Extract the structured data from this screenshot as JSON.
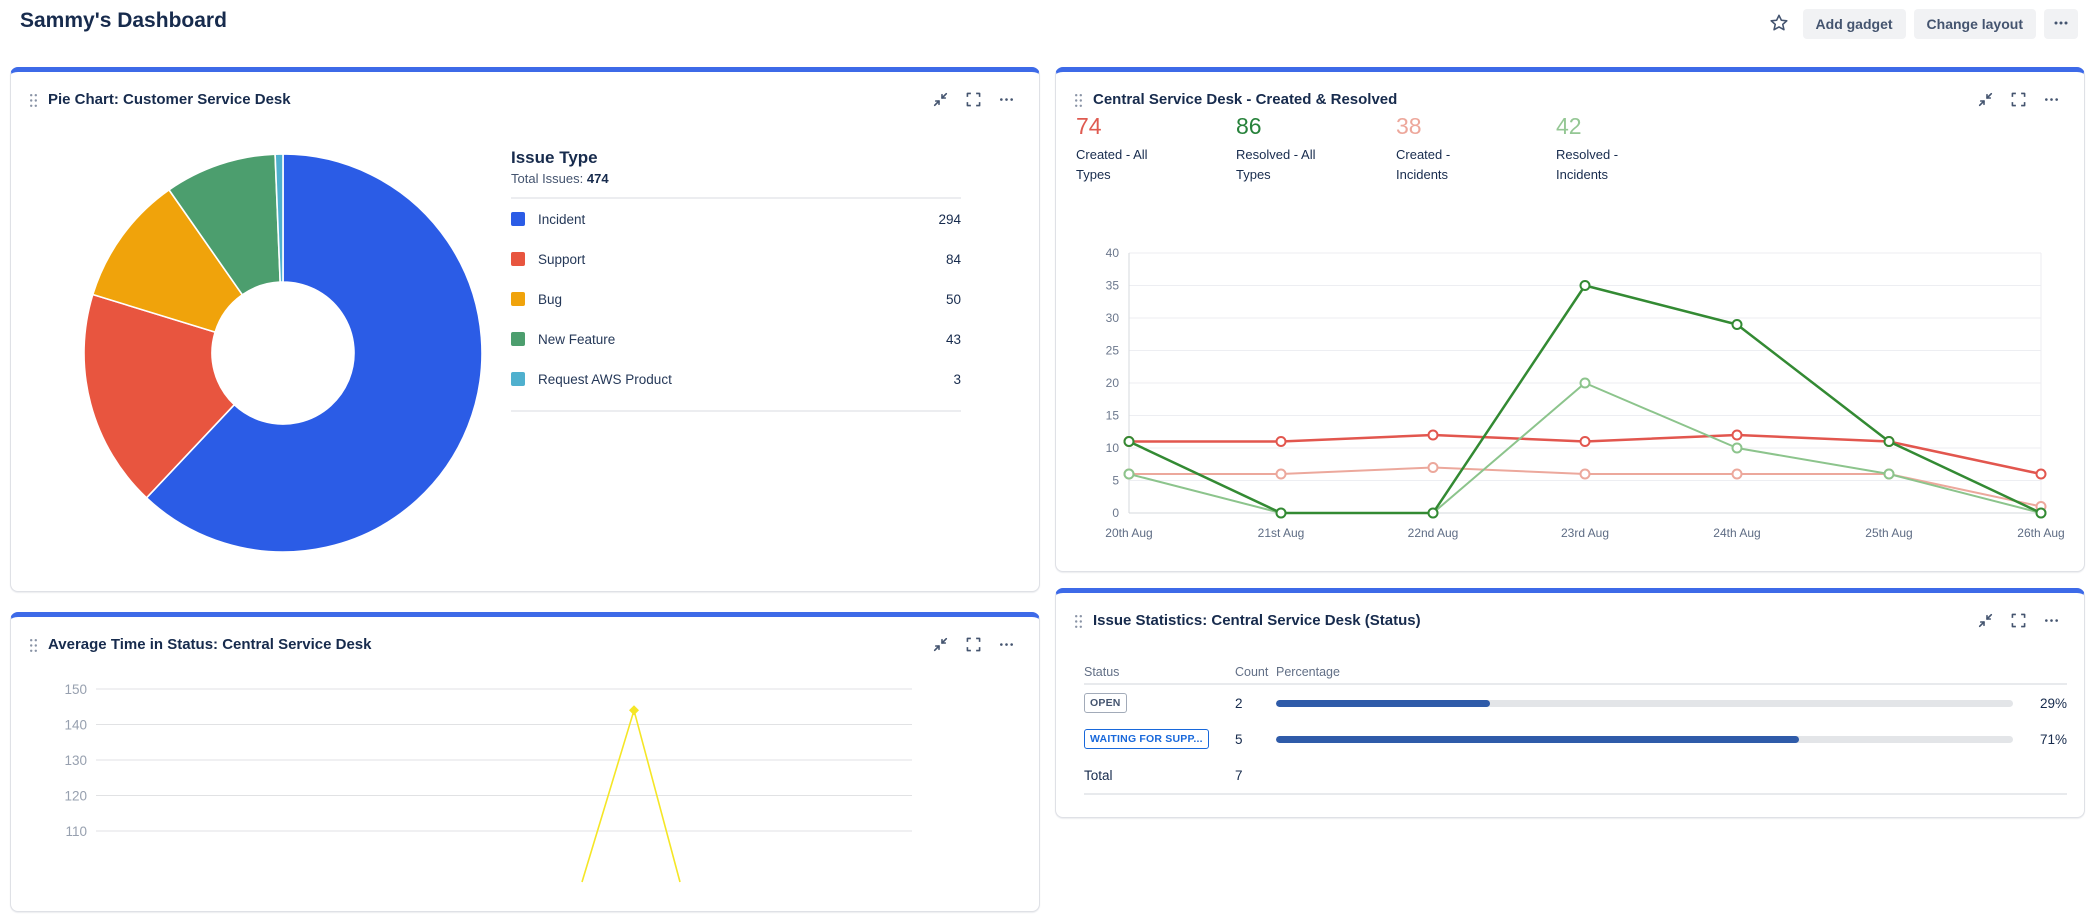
{
  "page": {
    "title": "Sammy's Dashboard"
  },
  "theme": {
    "accent": "#3D6AE8",
    "title_text": "#172B4D",
    "button_bg": "#F1F2F4",
    "button_text": "#44546F"
  },
  "toolbar": {
    "star_icon": "star-outline",
    "add_gadget_label": "Add gadget",
    "change_layout_label": "Change layout",
    "more_icon": "ellipsis"
  },
  "gadget_icons": {
    "drag": "drag-dots",
    "minimize": "collapse-arrows",
    "expand": "fullscreen-brackets",
    "more": "ellipsis"
  },
  "gadgets": {
    "pie": {
      "title": "Pie Chart: Customer Service Desk",
      "legend_title": "Issue Type",
      "total_label": "Total Issues:",
      "total_value": "474"
    },
    "created_resolved": {
      "title": "Central Service Desk - Created & Resolved",
      "stats": [
        {
          "value": "74",
          "label": "Created - All Types",
          "color": "#DF5A50"
        },
        {
          "value": "86",
          "label": "Resolved - All Types",
          "color": "#27823B"
        },
        {
          "value": "38",
          "label": "Created - Incidents",
          "color": "#EDA79B"
        },
        {
          "value": "42",
          "label": "Resolved - Incidents",
          "color": "#94C794"
        }
      ]
    },
    "avg_time": {
      "title": "Average Time in Status: Central Service Desk"
    },
    "issue_stats": {
      "title": "Issue Statistics: Central Service Desk (Status)"
    }
  },
  "chart_data": [
    {
      "type": "pie",
      "title": "Issue Type",
      "subtitle": "Total Issues: 474",
      "donut": true,
      "total": 474,
      "categories": [
        "Incident",
        "Support",
        "Bug",
        "New Feature",
        "Request AWS Product"
      ],
      "values": [
        294,
        84,
        50,
        43,
        3
      ],
      "colors": [
        "#2B5CE6",
        "#E8553F",
        "#F0A30B",
        "#4C9E6E",
        "#4FB0CE"
      ],
      "legend_position": "right"
    },
    {
      "type": "line",
      "title": "Central Service Desk - Created & Resolved",
      "x": [
        "20th Aug",
        "21st Aug",
        "22nd Aug",
        "23rd Aug",
        "24th Aug",
        "25th Aug",
        "26th Aug"
      ],
      "series": [
        {
          "name": "Created - All Types",
          "values": [
            11,
            11,
            12,
            11,
            12,
            11,
            6
          ],
          "color": "#E2564E",
          "total": 74
        },
        {
          "name": "Resolved - All Types",
          "values": [
            11,
            0,
            0,
            35,
            29,
            11,
            0
          ],
          "color": "#338A33",
          "total": 86
        },
        {
          "name": "Created - Incidents",
          "values": [
            6,
            6,
            7,
            6,
            6,
            6,
            1
          ],
          "color": "#ECA89C",
          "total": 38
        },
        {
          "name": "Resolved - Incidents",
          "values": [
            6,
            0,
            0,
            20,
            10,
            6,
            0
          ],
          "color": "#8CC48C",
          "total": 42
        }
      ],
      "ylim": [
        0,
        40
      ],
      "ytick_step": 5,
      "grid": true,
      "markers": "open-circle",
      "legend_position": "none"
    },
    {
      "type": "line",
      "title": "Average Time in Status: Central Service Desk",
      "yticks_visible": [
        150,
        140,
        130,
        120,
        110
      ],
      "grid": true,
      "series": [
        {
          "name": "Average Time in Status",
          "color": "#F5E626",
          "visible_peak_value": 144,
          "clipped": true
        }
      ]
    },
    {
      "type": "table",
      "title": "Issue Statistics: Central Service Desk (Status)",
      "columns": [
        "Status",
        "Count",
        "Percentage"
      ],
      "bar_color": "#2F5BA9",
      "rows": [
        {
          "status": "OPEN",
          "badge": "gray",
          "count": 2,
          "percent": 29,
          "percent_label": "29%"
        },
        {
          "status": "WAITING FOR SUPP...",
          "badge": "blue",
          "count": 5,
          "percent": 71,
          "percent_label": "71%"
        }
      ],
      "total_label": "Total",
      "total_value": 7
    }
  ]
}
